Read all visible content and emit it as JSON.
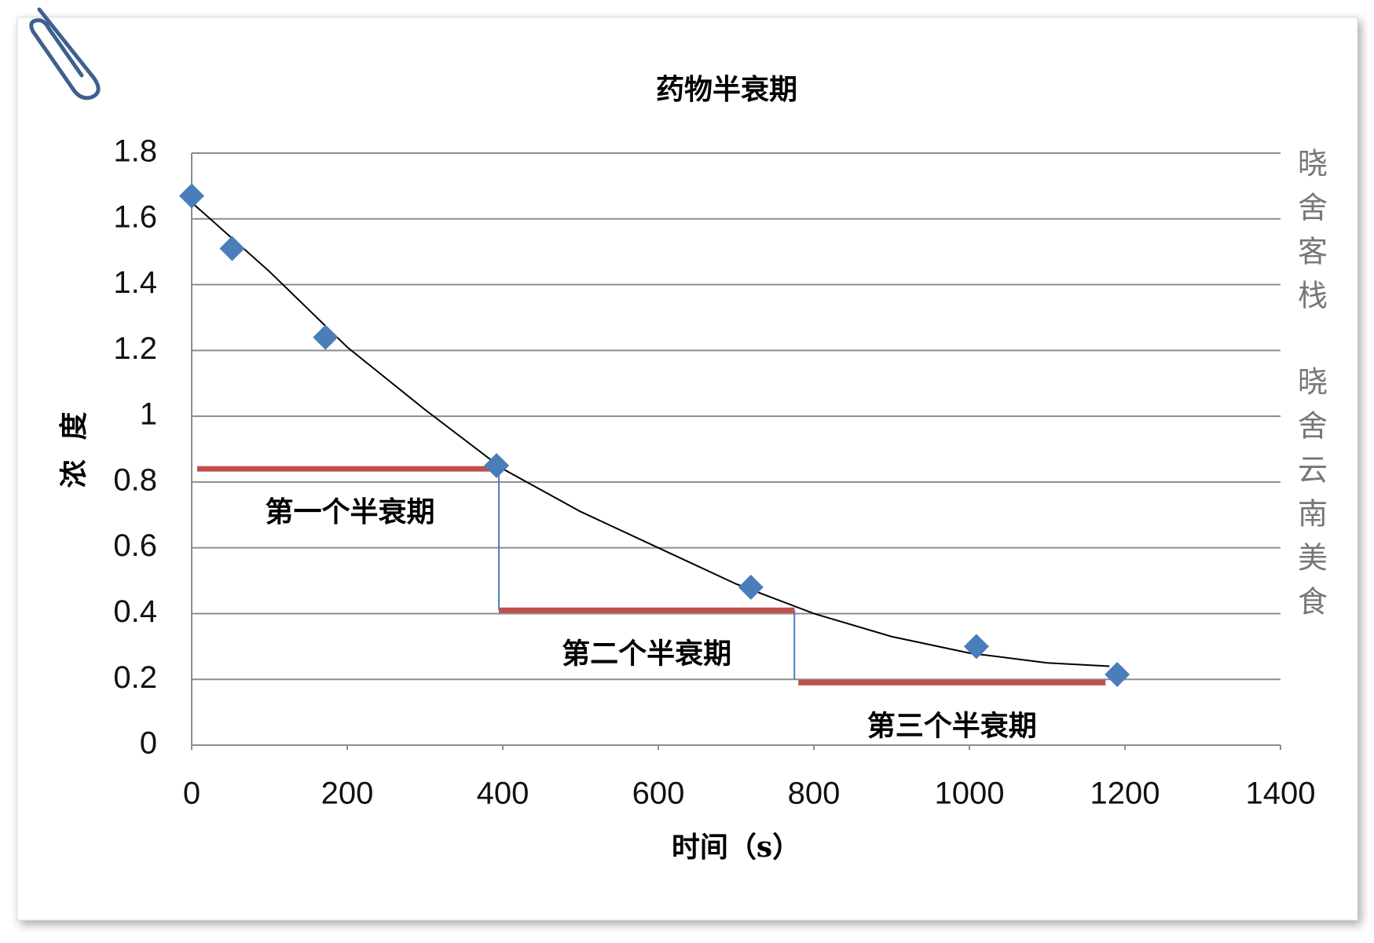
{
  "chart_data": {
    "type": "scatter",
    "title": "药物半衰期",
    "x_label": "时间（s）",
    "y_label": "浓  度",
    "x": [
      0,
      52,
      172,
      392,
      719,
      1009,
      1190
    ],
    "values": [
      1.67,
      1.51,
      1.24,
      0.85,
      0.48,
      0.3,
      0.215
    ],
    "color": "#4a7ebb",
    "trendline": {
      "color": "#000000",
      "x": [
        0,
        100,
        200,
        300,
        400,
        500,
        600,
        700,
        800,
        900,
        1000,
        1100,
        1180
      ],
      "values": [
        1.65,
        1.44,
        1.21,
        1.02,
        0.84,
        0.71,
        0.6,
        0.49,
        0.4,
        0.33,
        0.28,
        0.25,
        0.24
      ]
    },
    "half_lives": [
      {
        "label": "第一个半衰期",
        "x": [
          7,
          400
        ],
        "values": [
          0.84,
          0.84
        ],
        "color": "#c0504d"
      },
      {
        "label": "第二个半衰期",
        "x": [
          395,
          775
        ],
        "values": [
          0.41,
          0.41
        ],
        "color": "#c0504d"
      },
      {
        "label": "第三个半衰期",
        "x": [
          780,
          1175
        ],
        "values": [
          0.19,
          0.19
        ],
        "color": "#c0504d"
      }
    ],
    "drops": [
      {
        "x": [
          395,
          395
        ],
        "values": [
          0.84,
          0.41
        ],
        "color": "#4a7ebb"
      },
      {
        "x": [
          775,
          775
        ],
        "values": [
          0.41,
          0.2
        ],
        "color": "#4a7ebb"
      }
    ],
    "xlim": [
      0,
      1400
    ],
    "xticks": [
      0,
      200,
      400,
      600,
      800,
      1000,
      1200,
      1400
    ],
    "ylim": [
      0,
      1.8
    ],
    "yticks": [
      0,
      0.2,
      0.4,
      0.6,
      0.8,
      1,
      1.2,
      1.4,
      1.6,
      1.8
    ],
    "grid": true
  },
  "watermark": [
    "晓舍客栈",
    "晓舍云南美食"
  ]
}
